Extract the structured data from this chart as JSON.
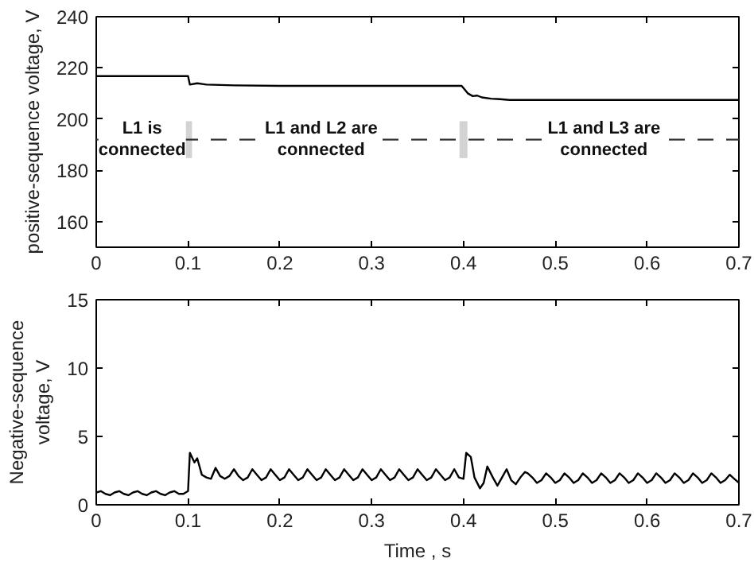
{
  "chart_data": [
    {
      "type": "line",
      "ylabel": "positive-sequence voltage, V",
      "xlim": [
        0,
        0.7
      ],
      "ylim": [
        150,
        240
      ],
      "xticks": [
        0,
        0.1,
        0.2,
        0.3,
        0.4,
        0.5,
        0.6,
        0.7
      ],
      "yticks": [
        160,
        180,
        200,
        220,
        240
      ],
      "grid": false,
      "x": [
        0,
        0.05,
        0.1,
        0.102,
        0.11,
        0.12,
        0.15,
        0.2,
        0.3,
        0.398,
        0.405,
        0.41,
        0.415,
        0.42,
        0.43,
        0.44,
        0.45,
        0.5,
        0.6,
        0.7
      ],
      "series": [
        {
          "color": "#000000",
          "values": [
            216.8,
            216.8,
            216.8,
            213.5,
            214,
            213.5,
            213.2,
            213,
            213,
            213,
            210,
            209,
            209.2,
            208.5,
            208,
            207.8,
            207.5,
            207.5,
            207.5,
            207.5
          ]
        }
      ],
      "ref_lines": [
        {
          "axis": "y",
          "value": 192,
          "color": "#333333",
          "line_style": "dashed"
        },
        {
          "axis": "x",
          "value": 0.1,
          "color": "#d3d3d3"
        },
        {
          "axis": "x",
          "value": 0.4,
          "color": "#d3d3d3"
        }
      ],
      "annotations": [
        {
          "text": "L1 is\nconnected",
          "x": 0.05,
          "y": 192
        },
        {
          "text": "L1 and L2 are\nconnected",
          "x": 0.245,
          "y": 192
        },
        {
          "text": "L1 and L3 are\nconnected",
          "x": 0.553,
          "y": 192
        }
      ]
    },
    {
      "type": "line",
      "xlabel": "Time , s",
      "ylabel": "Negative-sequence\nvoltage, V",
      "xlim": [
        0,
        0.7
      ],
      "ylim": [
        0,
        15
      ],
      "xticks": [
        0,
        0.1,
        0.2,
        0.3,
        0.4,
        0.5,
        0.6,
        0.7
      ],
      "yticks": [
        0,
        5,
        10,
        15
      ],
      "grid": false,
      "x": [
        0,
        0.005,
        0.01,
        0.015,
        0.02,
        0.025,
        0.03,
        0.035,
        0.04,
        0.045,
        0.05,
        0.055,
        0.06,
        0.065,
        0.07,
        0.075,
        0.08,
        0.085,
        0.09,
        0.095,
        0.1,
        0.102,
        0.107,
        0.11,
        0.115,
        0.12,
        0.125,
        0.13,
        0.135,
        0.14,
        0.145,
        0.15,
        0.155,
        0.16,
        0.165,
        0.17,
        0.175,
        0.18,
        0.185,
        0.19,
        0.195,
        0.2,
        0.205,
        0.21,
        0.215,
        0.22,
        0.225,
        0.23,
        0.235,
        0.24,
        0.245,
        0.25,
        0.255,
        0.26,
        0.265,
        0.27,
        0.275,
        0.28,
        0.285,
        0.29,
        0.295,
        0.3,
        0.305,
        0.31,
        0.315,
        0.32,
        0.325,
        0.33,
        0.335,
        0.34,
        0.345,
        0.35,
        0.355,
        0.36,
        0.365,
        0.37,
        0.375,
        0.38,
        0.385,
        0.39,
        0.395,
        0.4,
        0.403,
        0.408,
        0.412,
        0.418,
        0.422,
        0.426,
        0.432,
        0.437,
        0.442,
        0.447,
        0.452,
        0.457,
        0.462,
        0.467,
        0.47,
        0.475,
        0.48,
        0.485,
        0.49,
        0.495,
        0.5,
        0.505,
        0.51,
        0.515,
        0.52,
        0.525,
        0.53,
        0.535,
        0.54,
        0.545,
        0.55,
        0.555,
        0.56,
        0.565,
        0.57,
        0.575,
        0.58,
        0.585,
        0.59,
        0.595,
        0.6,
        0.605,
        0.61,
        0.615,
        0.62,
        0.625,
        0.63,
        0.635,
        0.64,
        0.645,
        0.65,
        0.655,
        0.66,
        0.665,
        0.67,
        0.675,
        0.68,
        0.685,
        0.69,
        0.695,
        0.7
      ],
      "series": [
        {
          "color": "#000000",
          "values": [
            0.9,
            1.0,
            0.8,
            0.7,
            0.9,
            1.0,
            0.8,
            0.7,
            0.9,
            1.0,
            0.8,
            0.7,
            0.9,
            1.0,
            0.8,
            0.7,
            0.9,
            1.0,
            0.8,
            0.8,
            1.0,
            3.8,
            3.1,
            3.4,
            2.2,
            2.0,
            1.9,
            2.7,
            2.1,
            1.9,
            2.1,
            2.6,
            2.1,
            1.8,
            2.0,
            2.6,
            2.2,
            1.8,
            2.0,
            2.6,
            2.2,
            1.8,
            2.0,
            2.6,
            2.2,
            1.8,
            2.0,
            2.6,
            2.2,
            1.8,
            2.0,
            2.6,
            2.2,
            1.8,
            2.0,
            2.6,
            2.2,
            1.8,
            2.0,
            2.6,
            2.2,
            1.8,
            2.0,
            2.6,
            2.2,
            1.8,
            2.0,
            2.6,
            2.2,
            1.8,
            2.0,
            2.6,
            2.2,
            1.8,
            2.0,
            2.6,
            2.2,
            1.8,
            2.0,
            2.6,
            2.0,
            1.9,
            3.8,
            3.5,
            2.0,
            1.2,
            1.6,
            2.8,
            2.0,
            1.4,
            2.0,
            2.6,
            1.8,
            1.5,
            2.0,
            2.4,
            2.3,
            2.0,
            1.6,
            1.8,
            2.3,
            2.0,
            1.6,
            1.8,
            2.3,
            2.0,
            1.6,
            1.8,
            2.3,
            2.0,
            1.6,
            1.8,
            2.3,
            2.0,
            1.6,
            1.8,
            2.3,
            2.0,
            1.6,
            1.8,
            2.3,
            2.0,
            1.6,
            1.8,
            2.3,
            2.0,
            1.6,
            1.8,
            2.3,
            2.0,
            1.6,
            1.8,
            2.3,
            2.0,
            1.6,
            1.8,
            2.3,
            2.0,
            1.6,
            1.8,
            2.2,
            1.9,
            1.6
          ]
        }
      ]
    }
  ]
}
